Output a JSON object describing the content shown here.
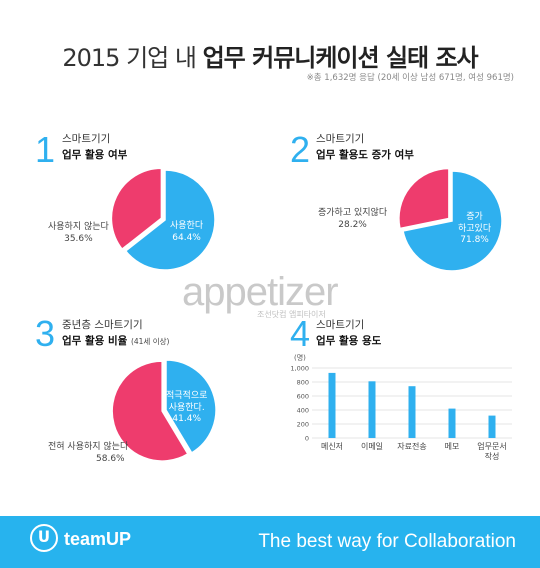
{
  "header": {
    "title_plain": "2015 기업 내",
    "title_bold": "업무 커뮤니케이션 실태 조사",
    "note": "※총 1,632명 응답 (20세 이상 남성 671명, 여성 961명)"
  },
  "colors": {
    "pink": "#ee3c6d",
    "blue": "#2fb0ef"
  },
  "sections": [
    {
      "number": "1",
      "line1": "스마트기기",
      "line2": "업무 활용 여부",
      "line2_note": ""
    },
    {
      "number": "2",
      "line1": "스마트기기",
      "line2": "업무 활용도 증가 여부",
      "line2_note": ""
    },
    {
      "number": "3",
      "line1": "중년층 스마트기기",
      "line2": "업무 활용 비율",
      "line2_note": "(41세 이상)"
    },
    {
      "number": "4",
      "line1": "스마트기기",
      "line2": "업무 활용 용도",
      "line2_note": ""
    }
  ],
  "chart_data": [
    {
      "type": "pie",
      "slices": [
        {
          "label": "사용한다",
          "value": 64.4,
          "value_label": "64.4%",
          "color": "#2fb0ef"
        },
        {
          "label": "사용하지 않는다",
          "value": 35.6,
          "value_label": "35.6%",
          "color": "#ee3c6d"
        }
      ]
    },
    {
      "type": "pie",
      "slices": [
        {
          "label_lines": [
            "증가",
            "하고있다"
          ],
          "value": 71.8,
          "value_label": "71.8%",
          "color": "#2fb0ef"
        },
        {
          "label": "증가하고 있지않다",
          "value": 28.2,
          "value_label": "28.2%",
          "color": "#ee3c6d"
        }
      ]
    },
    {
      "type": "pie",
      "slices": [
        {
          "label_lines": [
            "적극적으로",
            "사용한다."
          ],
          "value": 41.4,
          "value_label": "41.4%",
          "color": "#2fb0ef"
        },
        {
          "label": "전혀 사용하지 않는다",
          "value": 58.6,
          "value_label": "58.6%",
          "color": "#ee3c6d"
        }
      ]
    },
    {
      "type": "bar",
      "ylabel": "(명)",
      "ylim": [
        0,
        1000
      ],
      "yticks": [
        "1,000",
        "800",
        "600",
        "400",
        "200",
        "0"
      ],
      "categories": [
        {
          "lines": [
            "메신저"
          ]
        },
        {
          "lines": [
            "이메일"
          ]
        },
        {
          "lines": [
            "자료전송"
          ]
        },
        {
          "lines": [
            "메모"
          ]
        },
        {
          "lines": [
            "업무문서",
            "작성"
          ]
        }
      ],
      "values": [
        930,
        810,
        740,
        420,
        320
      ],
      "color": "#2fb0ef"
    }
  ],
  "watermark": {
    "text": "appetizer",
    "sub": "조선닷컴 앱피타이저"
  },
  "footer": {
    "brand": "teamUP",
    "slogan": "The best way for Collaboration"
  }
}
